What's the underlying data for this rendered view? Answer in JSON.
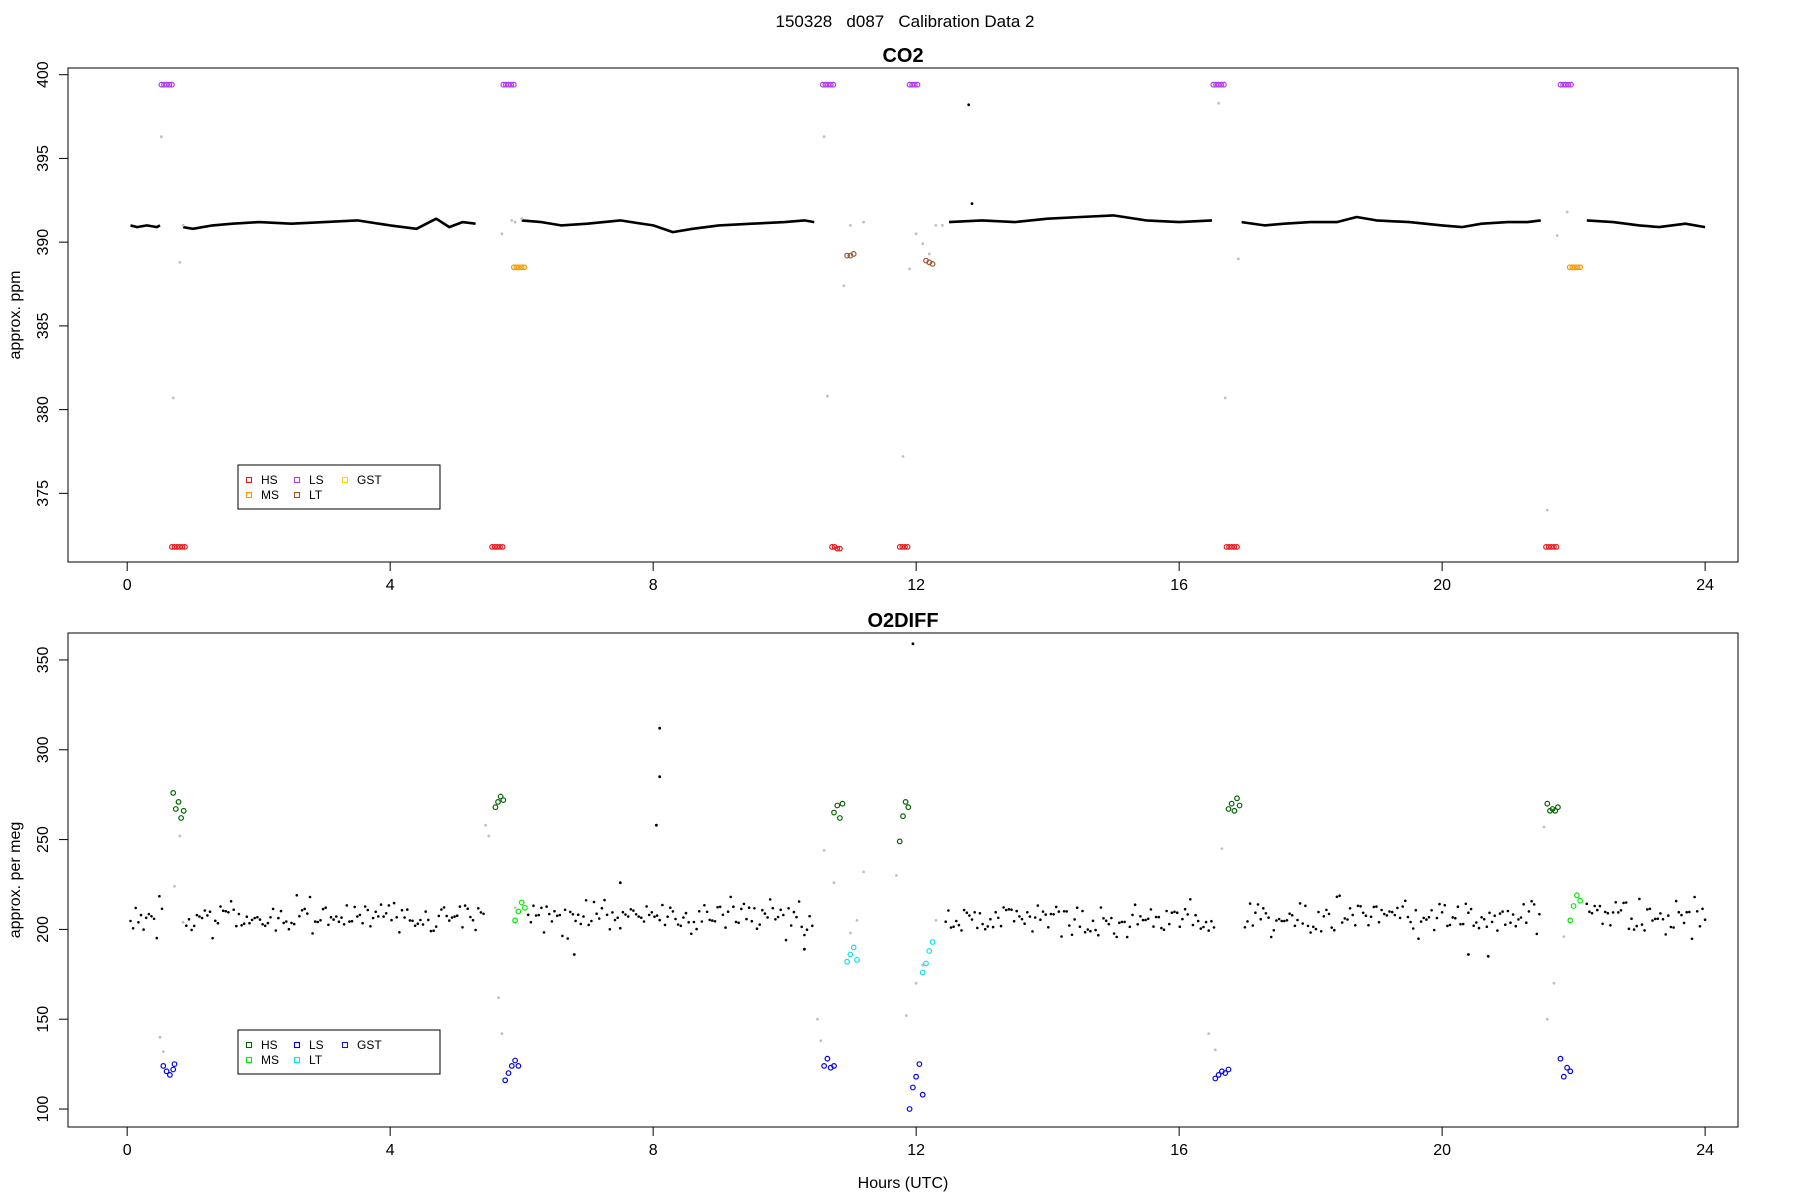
{
  "figure": {
    "title": "150328   d087   Calibration Data 2",
    "xlabel": "Hours (UTC)"
  },
  "chart_data": [
    {
      "type": "scatter",
      "title": "CO2",
      "ylabel": "approx. ppm",
      "xlim": [
        -0.9,
        24.5
      ],
      "ylim": [
        370.9,
        400.4
      ],
      "xticks": [
        0,
        4,
        8,
        12,
        16,
        20,
        24
      ],
      "yticks": [
        375,
        380,
        385,
        390,
        395,
        400
      ],
      "grid": false,
      "legend": {
        "placement": "bottom-left",
        "entries": [
          {
            "name": "HS",
            "color": "#e41a1c"
          },
          {
            "name": "MS",
            "color": "#ff9900"
          },
          {
            "name": "LS",
            "color": "#b23aee"
          },
          {
            "name": "LT",
            "color": "#a0522d"
          },
          {
            "name": "GST",
            "color": "#f5d800"
          }
        ]
      },
      "main_series": {
        "name": "ambient",
        "color": "#000000",
        "segments": [
          {
            "x": [
              0.05,
              0.15,
              0.3,
              0.45,
              0.5
            ],
            "y": [
              391.0,
              390.9,
              391.0,
              390.9,
              391.0
            ]
          },
          {
            "x": [
              0.85,
              1.0,
              1.3,
              1.6,
              2.0,
              2.5,
              3.0,
              3.5,
              4.0,
              4.4,
              4.7,
              4.9,
              5.1,
              5.3
            ],
            "y": [
              390.9,
              390.8,
              391.0,
              391.1,
              391.2,
              391.1,
              391.2,
              391.3,
              391.0,
              390.8,
              391.4,
              390.9,
              391.2,
              391.1
            ]
          },
          {
            "x": [
              6.0,
              6.3,
              6.6,
              7.0,
              7.5,
              8.0,
              8.3,
              8.6,
              9.0,
              9.5,
              10.0,
              10.3,
              10.45
            ],
            "y": [
              391.3,
              391.2,
              391.0,
              391.1,
              391.3,
              391.0,
              390.6,
              390.8,
              391.0,
              391.1,
              391.2,
              391.3,
              391.2
            ]
          },
          {
            "x": [
              12.5,
              13.0,
              13.5,
              14.0,
              14.5,
              15.0,
              15.5,
              16.0,
              16.5
            ],
            "y": [
              391.2,
              391.3,
              391.2,
              391.4,
              391.5,
              391.6,
              391.3,
              391.2,
              391.3
            ]
          },
          {
            "x": [
              16.95,
              17.3,
              17.6,
              18.0,
              18.4,
              18.7,
              19.0,
              19.5,
              20.0,
              20.3,
              20.6,
              21.0,
              21.3,
              21.5
            ],
            "y": [
              391.2,
              391.0,
              391.1,
              391.2,
              391.2,
              391.5,
              391.3,
              391.2,
              391.0,
              390.9,
              391.1,
              391.2,
              391.2,
              391.3
            ]
          },
          {
            "x": [
              22.2,
              22.6,
              23.0,
              23.3,
              23.7,
              24.0
            ],
            "y": [
              391.3,
              391.2,
              391.0,
              390.9,
              391.1,
              390.9
            ]
          }
        ]
      },
      "transition_points": {
        "color": "#c0c0c0",
        "x": [
          0.52,
          0.8,
          0.85,
          0.7,
          5.7,
          5.85,
          5.9,
          6.0,
          10.6,
          10.65,
          11.0,
          11.2,
          10.9,
          11.8,
          11.9,
          12.0,
          12.1,
          12.2,
          12.3,
          12.4,
          16.6,
          16.7,
          16.9,
          21.6,
          21.75,
          21.9
        ],
        "y": [
          396.3,
          388.8,
          391.0,
          380.7,
          390.5,
          391.3,
          391.2,
          391.4,
          396.3,
          380.8,
          391.0,
          391.2,
          387.4,
          377.2,
          388.4,
          390.5,
          389.9,
          389.3,
          391.0,
          391.0,
          398.3,
          380.7,
          389.0,
          374.0,
          390.4,
          391.8
        ]
      },
      "scatter_outliers": {
        "color": "#000000",
        "x": [
          12.8,
          12.85
        ],
        "y": [
          398.2,
          392.3
        ]
      },
      "calibrations": [
        {
          "name": "HS",
          "color": "#e41a1c",
          "x": [
            0.68,
            0.72,
            0.76,
            0.8,
            0.84,
            0.88
          ],
          "y": [
            371.8,
            371.8,
            371.8,
            371.8,
            371.8,
            371.8
          ]
        },
        {
          "name": "HS",
          "color": "#e41a1c",
          "x": [
            5.55,
            5.59,
            5.63,
            5.67,
            5.71
          ],
          "y": [
            371.8,
            371.8,
            371.8,
            371.8,
            371.8
          ]
        },
        {
          "name": "HS",
          "color": "#e41a1c",
          "x": [
            10.72,
            10.76,
            10.8,
            10.84
          ],
          "y": [
            371.8,
            371.8,
            371.7,
            371.7
          ]
        },
        {
          "name": "HS",
          "color": "#e41a1c",
          "x": [
            11.75,
            11.79,
            11.83,
            11.87
          ],
          "y": [
            371.8,
            371.8,
            371.8,
            371.8
          ]
        },
        {
          "name": "HS",
          "color": "#e41a1c",
          "x": [
            16.72,
            16.76,
            16.8,
            16.84,
            16.88
          ],
          "y": [
            371.8,
            371.8,
            371.8,
            371.8,
            371.8
          ]
        },
        {
          "name": "HS",
          "color": "#e41a1c",
          "x": [
            21.58,
            21.62,
            21.66,
            21.7,
            21.74
          ],
          "y": [
            371.8,
            371.8,
            371.8,
            371.8,
            371.8
          ]
        },
        {
          "name": "LS",
          "color": "#b23aee",
          "x": [
            0.52,
            0.56,
            0.6,
            0.64,
            0.68
          ],
          "y": [
            399.4,
            399.4,
            399.4,
            399.4,
            399.4
          ]
        },
        {
          "name": "LS",
          "color": "#b23aee",
          "x": [
            5.72,
            5.76,
            5.8,
            5.84,
            5.88
          ],
          "y": [
            399.4,
            399.4,
            399.4,
            399.4,
            399.4
          ]
        },
        {
          "name": "LS",
          "color": "#b23aee",
          "x": [
            10.58,
            10.62,
            10.66,
            10.7,
            10.74
          ],
          "y": [
            399.4,
            399.4,
            399.4,
            399.4,
            399.4
          ]
        },
        {
          "name": "LS",
          "color": "#b23aee",
          "x": [
            11.9,
            11.94,
            11.98,
            12.02
          ],
          "y": [
            399.4,
            399.4,
            399.4,
            399.4
          ]
        },
        {
          "name": "LS",
          "color": "#b23aee",
          "x": [
            16.52,
            16.56,
            16.6,
            16.64,
            16.68
          ],
          "y": [
            399.4,
            399.4,
            399.4,
            399.4,
            399.4
          ]
        },
        {
          "name": "LS",
          "color": "#b23aee",
          "x": [
            21.8,
            21.84,
            21.88,
            21.92,
            21.96
          ],
          "y": [
            399.4,
            399.4,
            399.4,
            399.4,
            399.4
          ]
        },
        {
          "name": "MS",
          "color": "#ff9900",
          "x": [
            5.88,
            5.92,
            5.96,
            6.0,
            6.04
          ],
          "y": [
            388.5,
            388.5,
            388.5,
            388.5,
            388.5
          ]
        },
        {
          "name": "MS",
          "color": "#ff9900",
          "x": [
            21.94,
            21.98,
            22.02,
            22.06,
            22.1
          ],
          "y": [
            388.5,
            388.5,
            388.5,
            388.5,
            388.5
          ]
        },
        {
          "name": "LT",
          "color": "#a0522d",
          "x": [
            10.95,
            11.0,
            11.05
          ],
          "y": [
            389.2,
            389.2,
            389.3
          ]
        },
        {
          "name": "LT",
          "color": "#a0522d",
          "x": [
            12.15,
            12.2,
            12.25
          ],
          "y": [
            388.9,
            388.8,
            388.7
          ]
        }
      ]
    },
    {
      "type": "scatter",
      "title": "O2DIFF",
      "ylabel": "approx. per meg",
      "xlim": [
        -0.9,
        24.5
      ],
      "ylim": [
        90,
        365
      ],
      "xticks": [
        0,
        4,
        8,
        12,
        16,
        20,
        24
      ],
      "yticks": [
        100,
        150,
        200,
        250,
        300,
        350
      ],
      "grid": false,
      "legend": {
        "placement": "bottom-left",
        "entries": [
          {
            "name": "HS",
            "color": "#006400"
          },
          {
            "name": "MS",
            "color": "#00ee00"
          },
          {
            "name": "LS",
            "color": "#0000ee"
          },
          {
            "name": "LT",
            "color": "#00e5ee"
          },
          {
            "name": "GST",
            "color": "#1c1cb0"
          }
        ]
      },
      "main_series": {
        "name": "ambient",
        "color": "#000000",
        "center": 207,
        "spread": 6,
        "ranges": [
          [
            0.05,
            0.55
          ],
          [
            0.9,
            5.45
          ],
          [
            6.1,
            10.45
          ],
          [
            12.45,
            16.55
          ],
          [
            17.0,
            21.5
          ],
          [
            22.2,
            24.0
          ]
        ]
      },
      "transition_points": {
        "color": "#c0c0c0",
        "x": [
          0.5,
          0.55,
          0.72,
          0.8,
          0.85,
          5.45,
          5.5,
          5.65,
          5.7,
          5.9,
          10.5,
          10.55,
          10.6,
          10.75,
          11.0,
          11.1,
          11.2,
          11.7,
          11.85,
          12.0,
          12.1,
          12.3,
          16.45,
          16.55,
          16.65,
          21.55,
          21.6,
          21.7,
          21.85
        ],
        "y": [
          140,
          132,
          224,
          252,
          204,
          258,
          252,
          162,
          142,
          212,
          150,
          138,
          244,
          226,
          198,
          205,
          232,
          230,
          152,
          170,
          180,
          205,
          142,
          133,
          245,
          257,
          150,
          170,
          196
        ]
      },
      "scatter_outliers": {
        "color": "#000000",
        "x": [
          8.1,
          8.1,
          8.05,
          11.95,
          6.8,
          20.4,
          20.7,
          10.3,
          7.5
        ],
        "y": [
          312,
          285,
          258,
          359,
          186,
          186,
          185,
          189,
          226
        ]
      },
      "calibrations": [
        {
          "name": "HS",
          "color": "#006400",
          "x": [
            0.7,
            0.74,
            0.78,
            0.82,
            0.86
          ],
          "y": [
            276,
            267,
            271,
            262,
            266
          ]
        },
        {
          "name": "HS",
          "color": "#006400",
          "x": [
            5.6,
            5.64,
            5.68,
            5.72
          ],
          "y": [
            268,
            271,
            274,
            272
          ]
        },
        {
          "name": "HS",
          "color": "#006400",
          "x": [
            10.75,
            10.8,
            10.84,
            10.88
          ],
          "y": [
            265,
            269,
            262,
            270
          ]
        },
        {
          "name": "HS",
          "color": "#006400",
          "x": [
            11.75,
            11.8,
            11.84,
            11.88
          ],
          "y": [
            249,
            263,
            271,
            268
          ]
        },
        {
          "name": "HS",
          "color": "#006400",
          "x": [
            16.75,
            16.8,
            16.84,
            16.88,
            16.92
          ],
          "y": [
            267,
            270,
            266,
            273,
            269
          ]
        },
        {
          "name": "HS",
          "color": "#006400",
          "x": [
            21.6,
            21.64,
            21.68,
            21.72,
            21.76
          ],
          "y": [
            270,
            266,
            267,
            266,
            268
          ]
        },
        {
          "name": "MS",
          "color": "#00ee00",
          "x": [
            5.9,
            5.95,
            6.0,
            6.05
          ],
          "y": [
            205,
            210,
            215,
            212
          ]
        },
        {
          "name": "MS",
          "color": "#00ee00",
          "x": [
            21.95,
            22.0,
            22.05,
            22.1
          ],
          "y": [
            205,
            213,
            219,
            216
          ]
        },
        {
          "name": "LS",
          "color": "#0000ee",
          "x": [
            0.55,
            0.6,
            0.65,
            0.7,
            0.72
          ],
          "y": [
            124,
            121,
            119,
            122,
            125
          ]
        },
        {
          "name": "LS",
          "color": "#0000ee",
          "x": [
            5.75,
            5.8,
            5.85,
            5.9,
            5.95
          ],
          "y": [
            116,
            120,
            124,
            127,
            124
          ]
        },
        {
          "name": "LS",
          "color": "#0000ee",
          "x": [
            10.6,
            10.65,
            10.7,
            10.75
          ],
          "y": [
            124,
            128,
            123,
            124
          ]
        },
        {
          "name": "LS",
          "color": "#0000ee",
          "x": [
            11.9,
            11.95,
            12.0,
            12.05,
            12.1
          ],
          "y": [
            100,
            112,
            118,
            125,
            108
          ]
        },
        {
          "name": "LS",
          "color": "#0000ee",
          "x": [
            16.55,
            16.6,
            16.65,
            16.7,
            16.75
          ],
          "y": [
            117,
            119,
            121,
            120,
            122
          ]
        },
        {
          "name": "LS",
          "color": "#0000ee",
          "x": [
            21.8,
            21.85,
            21.9,
            21.95
          ],
          "y": [
            128,
            118,
            123,
            121
          ]
        },
        {
          "name": "LT",
          "color": "#00e5ee",
          "x": [
            10.95,
            11.0,
            11.05,
            11.1
          ],
          "y": [
            182,
            186,
            190,
            183
          ]
        },
        {
          "name": "LT",
          "color": "#00e5ee",
          "x": [
            12.1,
            12.15,
            12.2,
            12.25
          ],
          "y": [
            176,
            181,
            188,
            193
          ]
        }
      ]
    }
  ]
}
